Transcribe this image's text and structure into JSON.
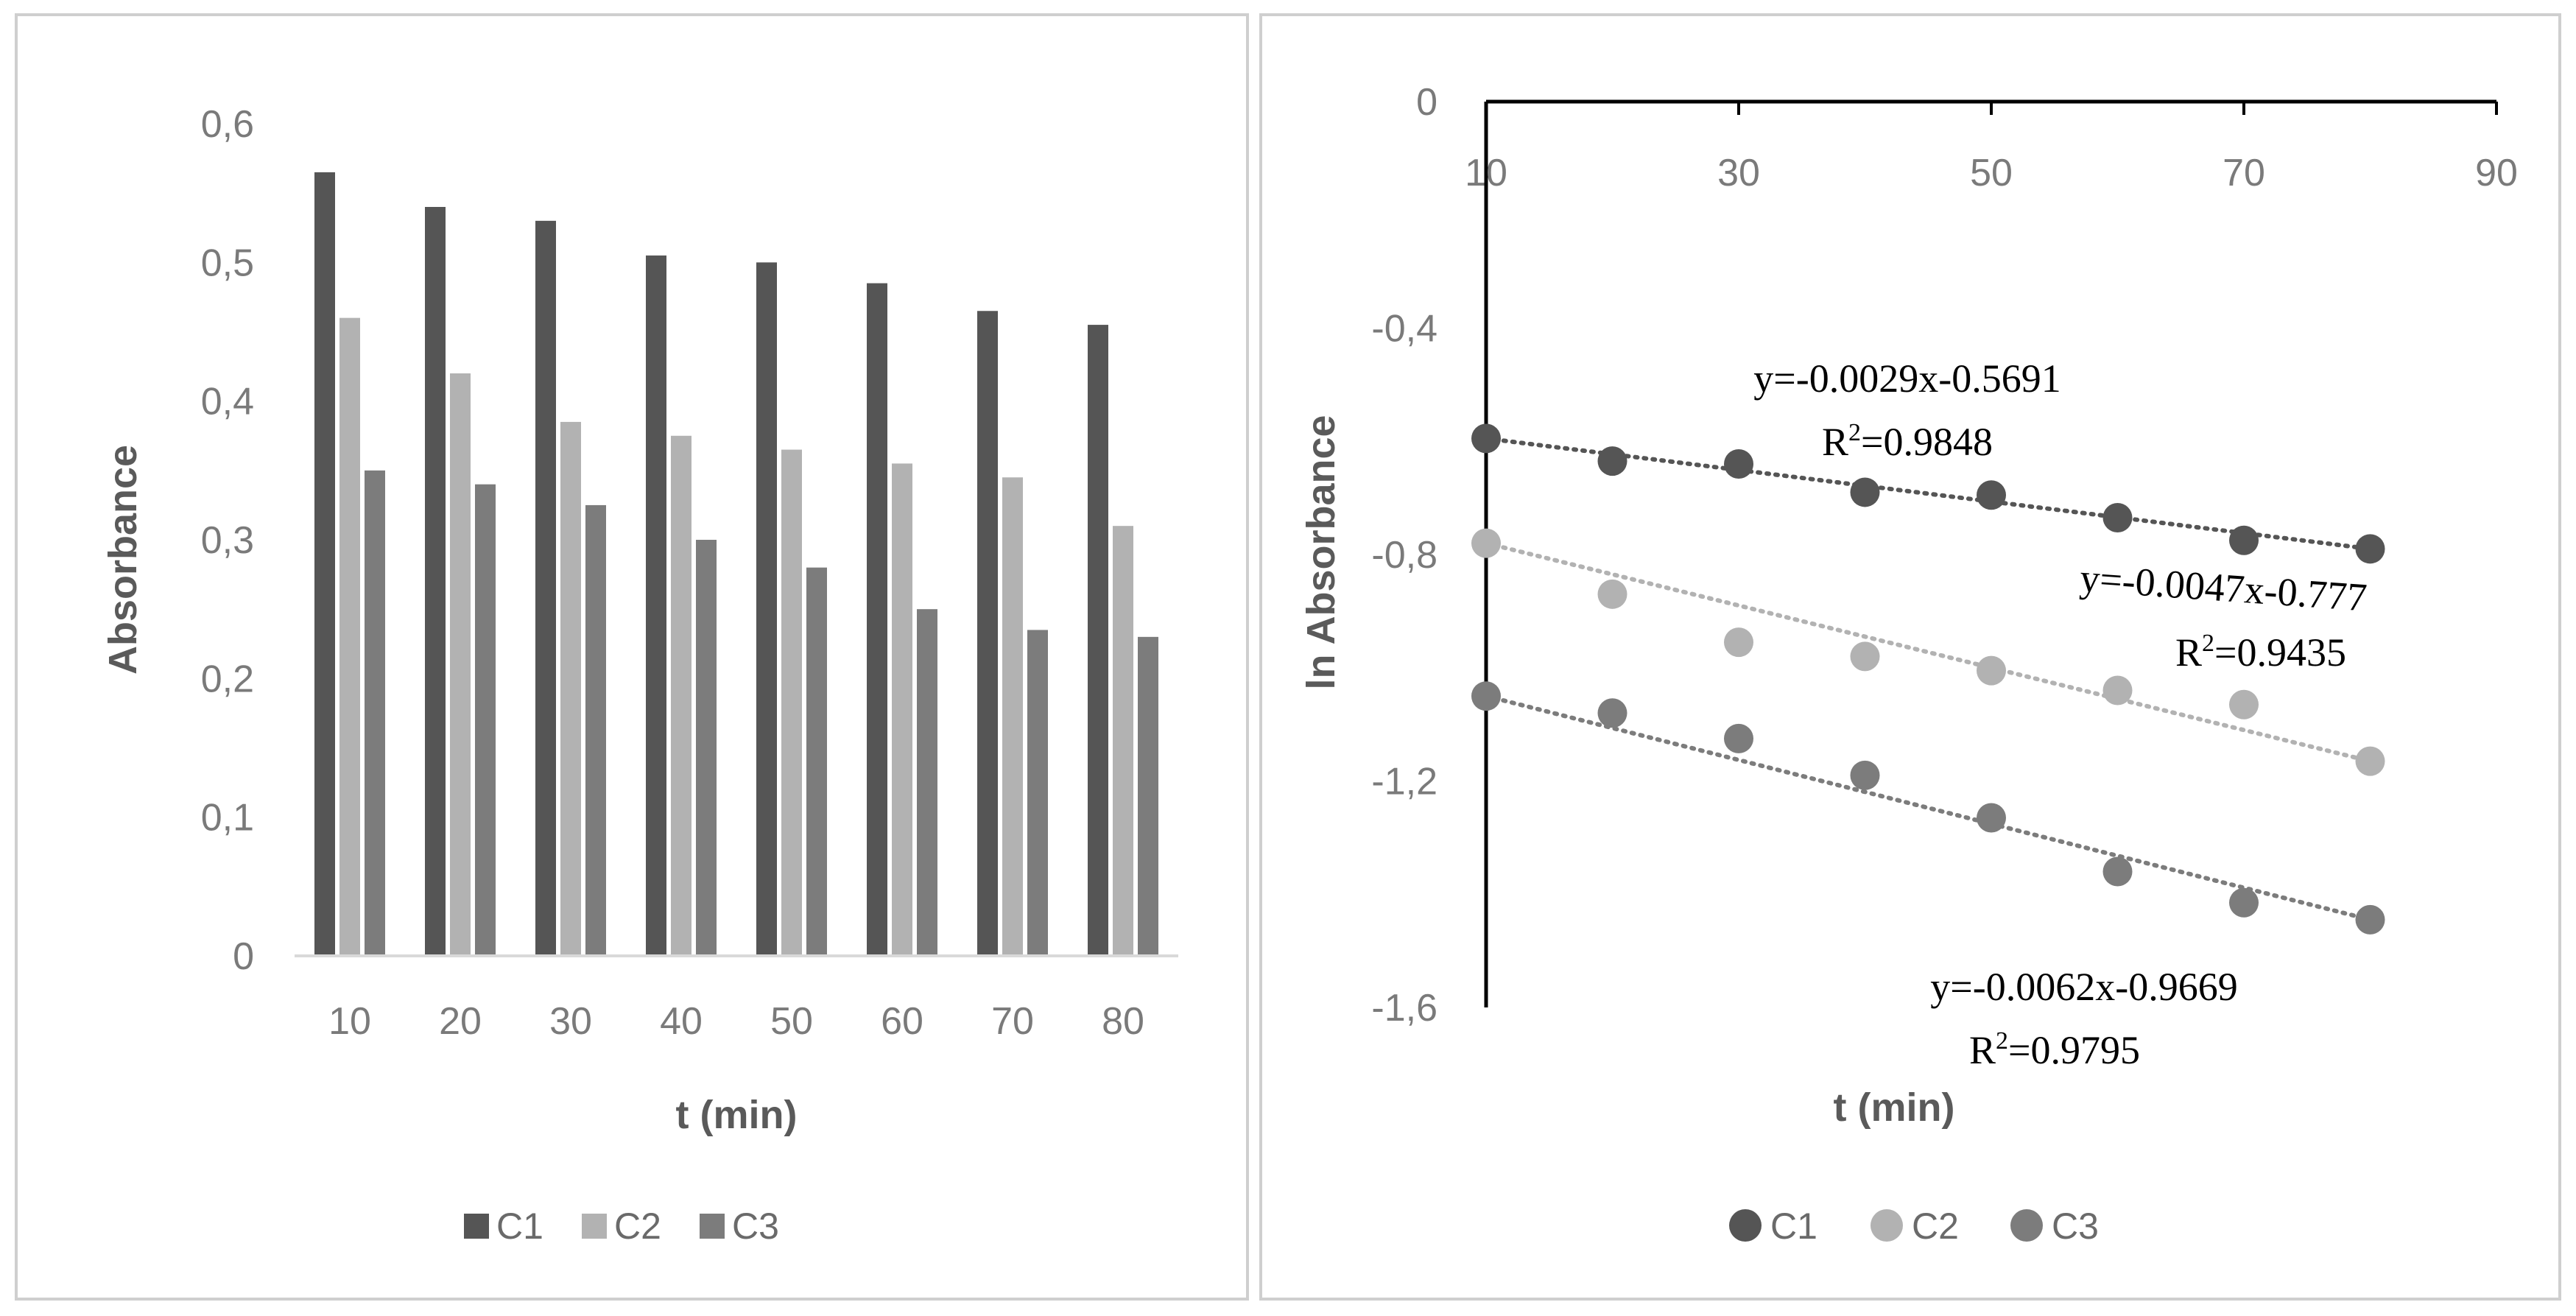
{
  "colors": {
    "c1": "#555555",
    "c2": "#b2b2b2",
    "c3": "#7c7c7c",
    "axis_text": "#7a7a7a",
    "axis_title": "#5a5a5a",
    "frame": "#cfcfcf",
    "axis_line": "#000000"
  },
  "chart_data": [
    {
      "type": "bar",
      "title": "",
      "xlabel": "t (min)",
      "ylabel": "Absorbance",
      "ylim": [
        0,
        0.6
      ],
      "y_ticks": [
        "0",
        "0,1",
        "0,2",
        "0,3",
        "0,4",
        "0,5",
        "0,6"
      ],
      "categories": [
        "10",
        "20",
        "30",
        "40",
        "50",
        "60",
        "70",
        "80"
      ],
      "series": [
        {
          "name": "C1",
          "values": [
            0.565,
            0.54,
            0.53,
            0.505,
            0.5,
            0.485,
            0.465,
            0.455
          ]
        },
        {
          "name": "C2",
          "values": [
            0.46,
            0.42,
            0.385,
            0.375,
            0.365,
            0.355,
            0.345,
            0.31
          ]
        },
        {
          "name": "C3",
          "values": [
            0.35,
            0.34,
            0.325,
            0.3,
            0.28,
            0.25,
            0.235,
            0.23
          ]
        }
      ],
      "legend": {
        "position": "bottom",
        "labels": [
          "C1",
          "C2",
          "C3"
        ]
      },
      "grid": false
    },
    {
      "type": "scatter",
      "title": "",
      "xlabel": "t (min)",
      "ylabel": "ln Absorbance",
      "xlim": [
        10,
        90
      ],
      "ylim": [
        -1.6,
        0
      ],
      "x_ticks": [
        "10",
        "30",
        "50",
        "70",
        "90"
      ],
      "y_ticks": [
        "0",
        "-0,4",
        "-0,8",
        "-1,2",
        "-1,6"
      ],
      "x": [
        10,
        20,
        30,
        40,
        50,
        60,
        70,
        80
      ],
      "series": [
        {
          "name": "C1",
          "values": [
            -0.595,
            -0.635,
            -0.64,
            -0.69,
            -0.695,
            -0.735,
            -0.775,
            -0.79
          ],
          "trend_slope": -0.0029,
          "trend_intercept": -0.5691,
          "equation": "y=-0.0029x-0.5691",
          "r2_label": "R",
          "r2_sup": "2",
          "r2_value": "=0.9848"
        },
        {
          "name": "C2",
          "values": [
            -0.78,
            -0.87,
            -0.955,
            -0.98,
            -1.005,
            -1.04,
            -1.065,
            -1.165
          ],
          "trend_slope": -0.0047,
          "trend_intercept": -0.777,
          "equation": "y=-0.0047x-0.777",
          "r2_label": "R",
          "r2_sup": "2",
          "r2_value": "=0.9435"
        },
        {
          "name": "C3",
          "values": [
            -1.05,
            -1.08,
            -1.125,
            -1.19,
            -1.265,
            -1.36,
            -1.415,
            -1.445
          ],
          "trend_slope": -0.0062,
          "trend_intercept": -0.9669,
          "equation": "y=-0.0062x-0.9669",
          "r2_label": "R",
          "r2_sup": "2",
          "r2_value": "=0.9795"
        }
      ],
      "legend": {
        "position": "bottom",
        "labels": [
          "C1",
          "C2",
          "C3"
        ]
      },
      "grid": false
    }
  ]
}
